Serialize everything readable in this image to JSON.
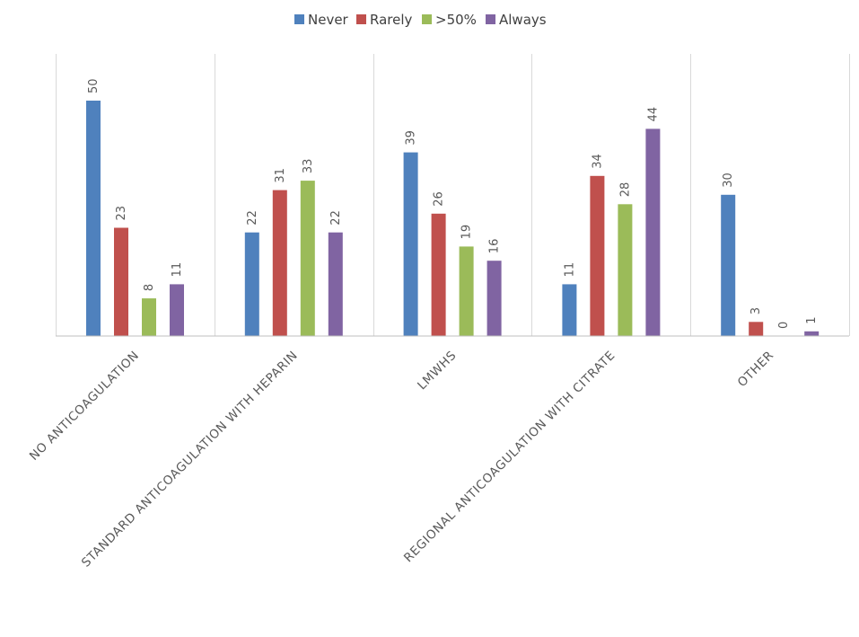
{
  "chart_data": {
    "type": "bar",
    "categories": [
      "NO ANTICOAGULATION",
      "STANDARD ANTICOAGULATION WITH HEPARIN",
      "LMWHS",
      "REGIONAL ANTICOAGULATION WITH CITRATE",
      "OTHER"
    ],
    "series": [
      {
        "name": "Never",
        "color": "#4F81BD",
        "values": [
          50,
          22,
          39,
          11,
          30
        ]
      },
      {
        "name": "Rarely",
        "color": "#C0504D",
        "values": [
          23,
          31,
          26,
          34,
          3
        ]
      },
      {
        "name": ">50%",
        "color": "#9BBB59",
        "values": [
          8,
          33,
          19,
          28,
          0
        ]
      },
      {
        "name": "Always",
        "color": "#8064A2",
        "values": [
          11,
          22,
          16,
          44,
          1
        ]
      }
    ],
    "title": "",
    "xlabel": "",
    "ylabel": "",
    "ylim": [
      0,
      50
    ],
    "grid": "vertical separators between categories",
    "legend": "top-center",
    "data_labels": true
  }
}
